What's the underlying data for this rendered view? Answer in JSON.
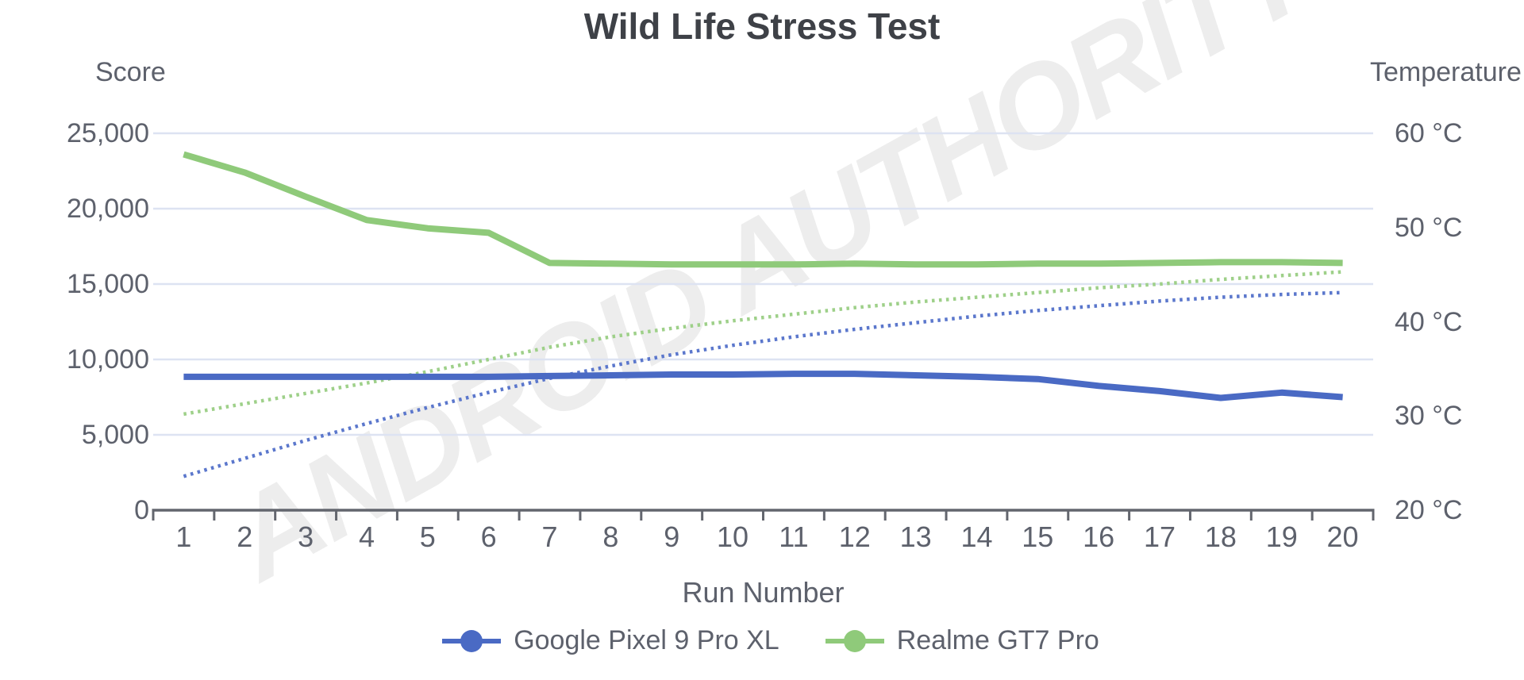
{
  "title": "Wild Life Stress Test",
  "watermark": "ANDROID AUTHORITY",
  "chart_data": {
    "type": "line",
    "title": "Wild Life Stress Test",
    "xlabel": "Run Number",
    "x_categories": [
      "1",
      "2",
      "3",
      "4",
      "5",
      "6",
      "7",
      "8",
      "9",
      "10",
      "11",
      "12",
      "13",
      "14",
      "15",
      "16",
      "17",
      "18",
      "19",
      "20"
    ],
    "grid": true,
    "legend_position": "bottom",
    "axes": {
      "left": {
        "title": "Score",
        "min": 0,
        "max": 25000,
        "tick_values": [
          0,
          5000,
          10000,
          15000,
          20000,
          25000
        ],
        "tick_labels": [
          "0",
          "5,000",
          "10,000",
          "15,000",
          "20,000",
          "25,000"
        ]
      },
      "right": {
        "title": "Temperature",
        "min": 20,
        "max": 60,
        "tick_values": [
          20,
          30,
          40,
          50,
          60
        ],
        "tick_labels": [
          "20 °C",
          "30 °C",
          "40 °C",
          "50 °C",
          "60 °C"
        ]
      }
    },
    "series": [
      {
        "name": "Google Pixel 9 Pro XL (score)",
        "axis": "left",
        "style": "solid",
        "color": "#4a6ac4",
        "values": [
          8850,
          8850,
          8850,
          8850,
          8850,
          8850,
          8900,
          8950,
          9000,
          9000,
          9050,
          9050,
          8950,
          8850,
          8700,
          8250,
          7900,
          7450,
          7800,
          7500
        ]
      },
      {
        "name": "Realme GT7 Pro (score)",
        "axis": "left",
        "style": "solid",
        "color": "#8fca7a",
        "values": [
          23600,
          22400,
          20800,
          19250,
          18700,
          18400,
          16400,
          16350,
          16300,
          16300,
          16300,
          16350,
          16300,
          16300,
          16350,
          16350,
          16400,
          16450,
          16450,
          16400
        ]
      },
      {
        "name": "Google Pixel 9 Pro XL (temperature °C)",
        "axis": "right",
        "style": "dotted",
        "color": "#5b77cc",
        "values": [
          23.6,
          25.5,
          27.4,
          29.2,
          30.9,
          32.5,
          34.0,
          35.3,
          36.5,
          37.5,
          38.4,
          39.2,
          39.9,
          40.6,
          41.2,
          41.7,
          42.2,
          42.6,
          42.9,
          43.1
        ]
      },
      {
        "name": "Realme GT7 Pro (temperature °C)",
        "axis": "right",
        "style": "dotted",
        "color": "#9ed089",
        "values": [
          30.2,
          31.3,
          32.4,
          33.5,
          34.7,
          36.0,
          37.3,
          38.4,
          39.3,
          40.1,
          40.8,
          41.5,
          42.1,
          42.6,
          43.1,
          43.6,
          44.0,
          44.5,
          44.9,
          45.3
        ]
      }
    ],
    "legend": [
      {
        "label": "Google Pixel 9 Pro XL",
        "color": "#4a6ac4"
      },
      {
        "label": "Realme GT7 Pro",
        "color": "#8fca7a"
      }
    ],
    "colors": {
      "gridline": "#dde3f2",
      "axis": "#63666e",
      "text": "#5d616c",
      "title": "#3e4147",
      "watermark": "#ededed"
    }
  }
}
